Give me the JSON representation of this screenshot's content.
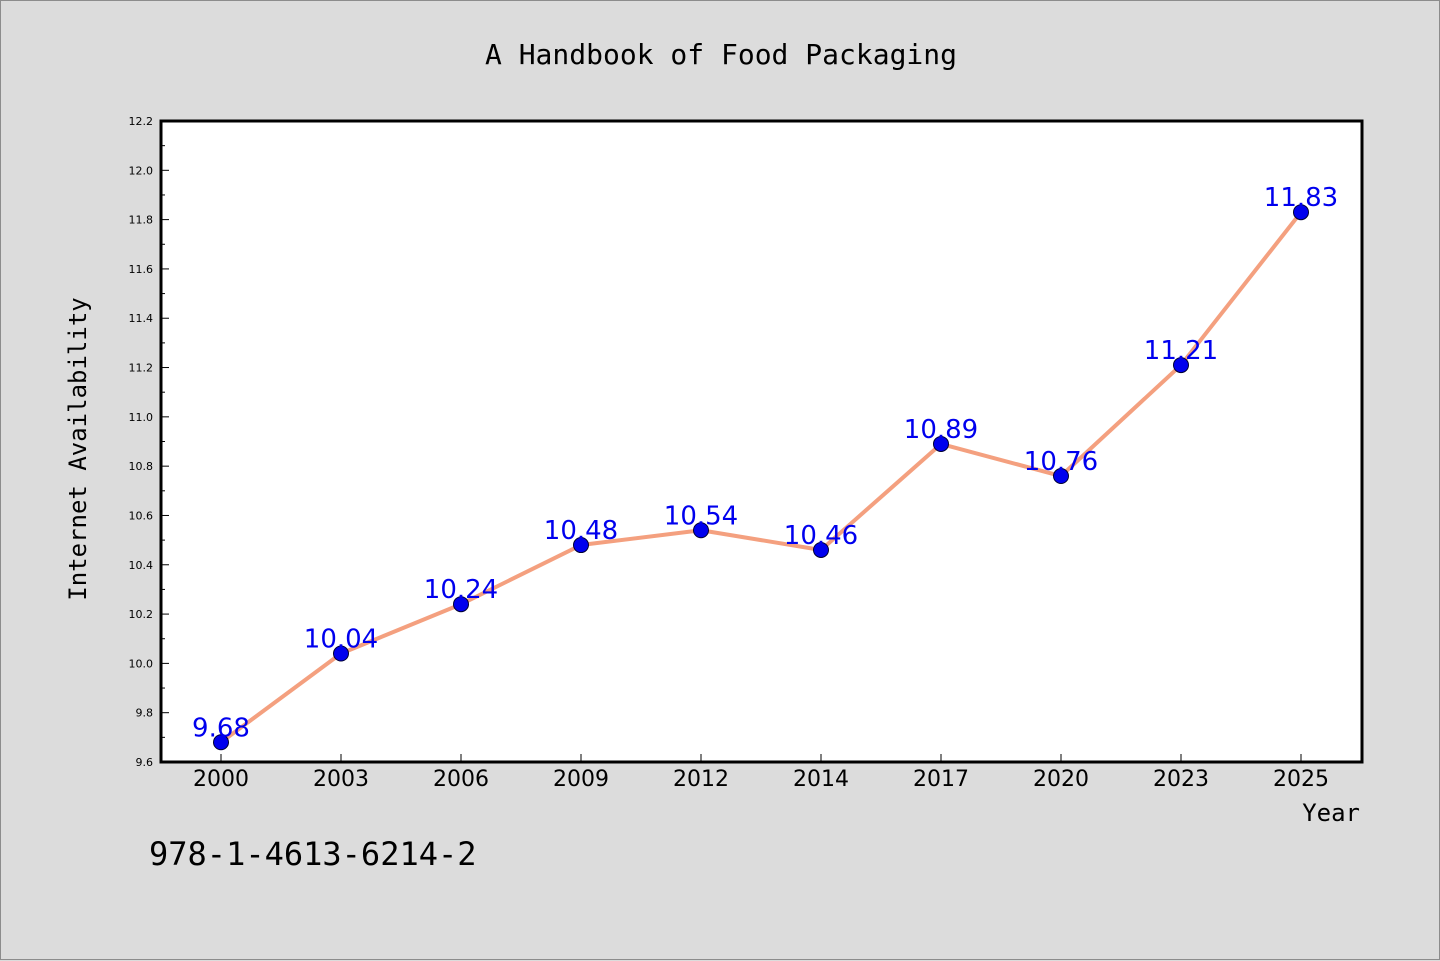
{
  "chart_data": {
    "type": "line",
    "title": "A Handbook of Food Packaging",
    "xlabel": "Year",
    "ylabel": "Internet Availability",
    "footnote": "978-1-4613-6214-2",
    "categories": [
      "2000",
      "2003",
      "2006",
      "2009",
      "2012",
      "2014",
      "2017",
      "2020",
      "2023",
      "2025"
    ],
    "series": [
      {
        "values": [
          9.68,
          10.04,
          10.24,
          10.48,
          10.54,
          10.46,
          10.89,
          10.76,
          11.21,
          11.83
        ]
      }
    ],
    "data_labels": [
      "9.68",
      "10.04",
      "10.24",
      "10.48",
      "10.54",
      "10.46",
      "10.89",
      "10.76",
      "11.21",
      "11.83"
    ],
    "ylim": [
      9.6,
      12.2
    ],
    "yticks": [
      "9.6",
      "9.8",
      "10.0",
      "10.2",
      "10.4",
      "10.6",
      "10.8",
      "11.0",
      "11.2",
      "11.4",
      "11.6",
      "11.8",
      "12.0",
      "12.2"
    ],
    "grid": false,
    "colors": {
      "line": "#f4a07f",
      "marker": "#0000ee",
      "label": "#0000ee",
      "background": "#dcdcdc",
      "plot_background": "#ffffff"
    }
  }
}
